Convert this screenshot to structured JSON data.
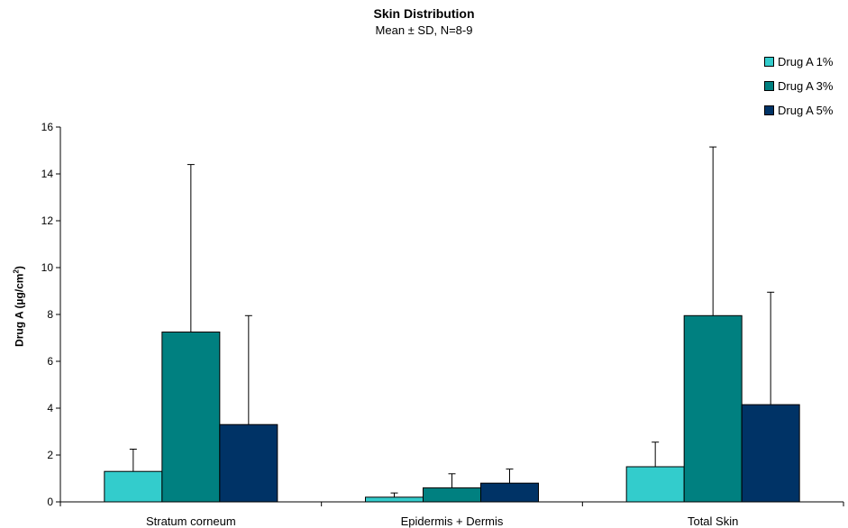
{
  "chart_data": {
    "type": "bar",
    "title": "Skin Distribution",
    "subtitle": "Mean ± SD, N=8-9",
    "ylabel_main": "Drug A (µg/cm",
    "ylabel_sup": "2",
    "ylabel_end": ")",
    "xlabel": "",
    "ylim": [
      0,
      16
    ],
    "yticks": [
      "0",
      "2",
      "4",
      "6",
      "8",
      "10",
      "12",
      "14",
      "16"
    ],
    "categories": [
      "Stratum corneum",
      "Epidermis + Dermis",
      "Total Skin"
    ],
    "series": [
      {
        "name": "Drug A 1%",
        "color": "#33CCCC",
        "values": [
          1.3,
          0.2,
          1.5
        ],
        "errors": [
          0.95,
          0.18,
          1.05
        ]
      },
      {
        "name": "Drug A 3%",
        "color": "#008080",
        "values": [
          7.25,
          0.6,
          7.95
        ],
        "errors": [
          7.15,
          0.6,
          7.2
        ]
      },
      {
        "name": "Drug A 5%",
        "color": "#003366",
        "values": [
          3.3,
          0.8,
          4.15
        ],
        "errors": [
          4.65,
          0.6,
          4.8
        ]
      }
    ],
    "legend_position": "top-right",
    "grid": false
  }
}
